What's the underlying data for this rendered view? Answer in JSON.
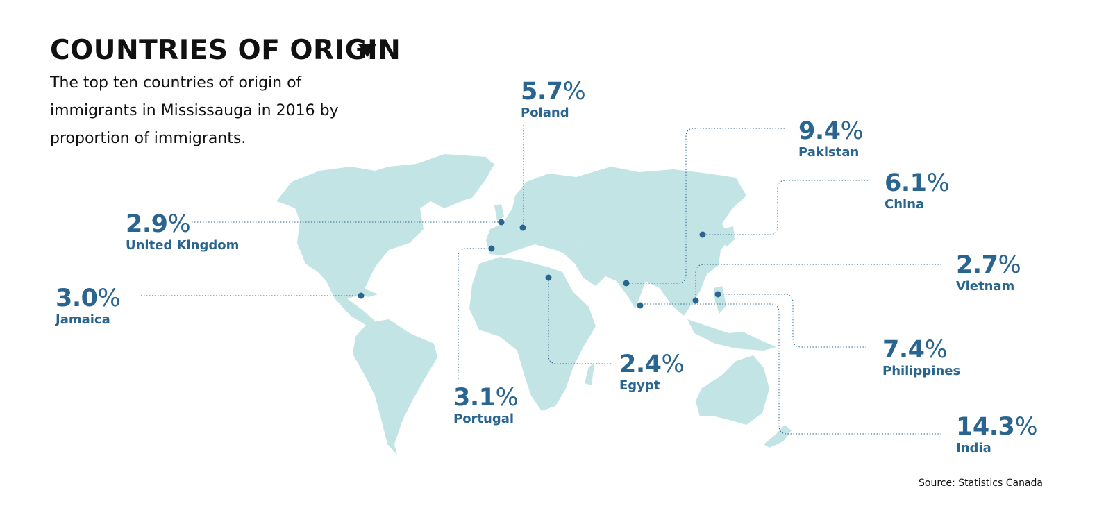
{
  "title": "COUNTRIES OF ORIGIN",
  "subtitle": "The top ten countries of origin of immigrants in Mississauga in 2016 by proportion of immigrants.",
  "source": "Source: Statistics Canada",
  "colors": {
    "land": "#c2e4e5",
    "accent": "#2a6590",
    "text": "#111111"
  },
  "icons": {
    "title_arrow": "triangle-down-icon"
  },
  "countries": [
    {
      "pct": "5.7",
      "name": "Poland"
    },
    {
      "pct": "9.4",
      "name": "Pakistan"
    },
    {
      "pct": "6.1",
      "name": "China"
    },
    {
      "pct": "2.9",
      "name": "United Kingdom"
    },
    {
      "pct": "2.7",
      "name": "Vietnam"
    },
    {
      "pct": "3.0",
      "name": "Jamaica"
    },
    {
      "pct": "7.4",
      "name": "Philippines"
    },
    {
      "pct": "2.4",
      "name": "Egypt"
    },
    {
      "pct": "3.1",
      "name": "Portugal"
    },
    {
      "pct": "14.3",
      "name": "India"
    }
  ],
  "percent_symbol": "%"
}
